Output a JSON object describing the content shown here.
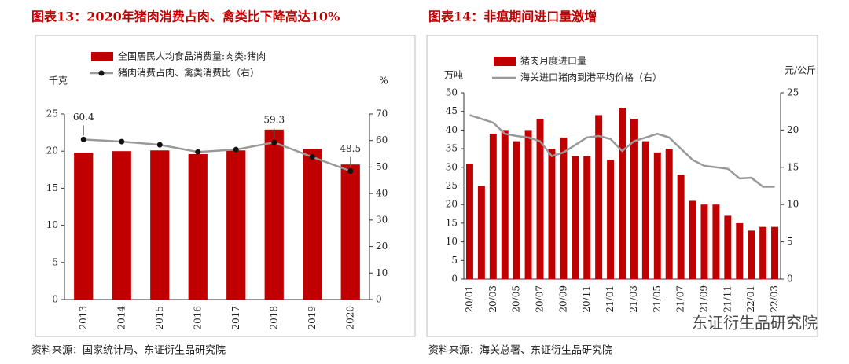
{
  "chart_data": [
    {
      "type": "combo",
      "title": "图表13：2020年猪肉消费占肉、禽类比下降高达10%",
      "source": "资料来源：国家统计局、东证衍生品研究院",
      "y_unit": "千克",
      "y2_unit": "%",
      "categories": [
        "2013",
        "2014",
        "2015",
        "2016",
        "2017",
        "2018",
        "2019",
        "2020"
      ],
      "series": [
        {
          "name": "全国居民人均食品消费量:肉类:猪肉",
          "kind": "bar",
          "color": "#c00000",
          "values": [
            19.8,
            20.0,
            20.1,
            19.6,
            20.1,
            22.9,
            20.3,
            18.2
          ]
        },
        {
          "name": "猪肉消费占肉、禽类消费比（右）",
          "kind": "line",
          "color": "#999999",
          "marker_color": "#111111",
          "axis": "y2",
          "values": [
            60.4,
            59.6,
            58.4,
            55.7,
            56.6,
            59.3,
            53.8,
            48.5
          ],
          "value_labels": [
            "60.4",
            null,
            null,
            null,
            null,
            "59.3",
            null,
            "48.5"
          ]
        }
      ],
      "ylim": [
        0,
        25
      ],
      "yticks": [
        0,
        5,
        10,
        15,
        20,
        25
      ],
      "y2lim": [
        0,
        70
      ],
      "y2ticks": [
        0,
        10,
        20,
        30,
        40,
        50,
        60,
        70
      ]
    },
    {
      "type": "combo",
      "title": "图表14：非瘟期间进口量激增",
      "source": "资料来源：海关总署、东证衍生品研究院",
      "y_unit": "万吨",
      "y2_unit": "元/公斤",
      "categories": [
        "20/01",
        null,
        "20/03",
        null,
        "20/05",
        null,
        "20/07",
        null,
        "20/09",
        null,
        "20/11",
        null,
        "21/01",
        null,
        "21/03",
        null,
        "21/05",
        null,
        "21/07",
        null,
        "21/09",
        null,
        "21/11",
        null,
        "22/01",
        null,
        "22/03"
      ],
      "series": [
        {
          "name": "猪肉月度进口量",
          "kind": "bar",
          "color": "#c00000",
          "values": [
            31,
            25,
            39,
            40,
            37,
            40,
            43,
            35,
            38,
            33,
            33,
            44,
            32,
            46,
            43,
            37,
            34,
            35,
            28,
            21,
            20,
            20,
            17,
            15,
            13,
            14,
            14
          ]
        },
        {
          "name": "海关进口猪肉到港平均价格（右）",
          "kind": "line",
          "color": "#999999",
          "axis": "y2",
          "values": [
            22,
            21.5,
            21,
            19.5,
            19.2,
            19,
            18.5,
            16.5,
            17,
            18,
            19,
            19.2,
            18.8,
            17.2,
            18.5,
            19,
            19.5,
            19,
            17.5,
            16,
            15.2,
            15,
            14.8,
            13.5,
            13.6,
            12.4,
            12.4
          ]
        }
      ],
      "ylim": [
        0,
        50
      ],
      "yticks": [
        0,
        5,
        10,
        15,
        20,
        25,
        30,
        35,
        40,
        45,
        50
      ],
      "y2lim": [
        0,
        25
      ],
      "y2ticks": [
        0,
        5,
        10,
        15,
        20,
        25
      ]
    }
  ],
  "watermark": "东证衍生品研究院"
}
